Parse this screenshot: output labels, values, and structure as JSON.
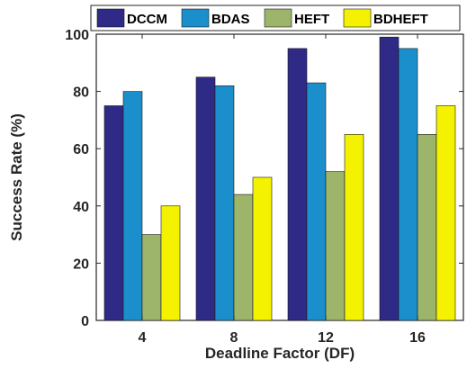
{
  "chart_data": {
    "type": "bar",
    "categories": [
      "4",
      "8",
      "12",
      "16"
    ],
    "series": [
      {
        "name": "DCCM",
        "values": [
          75,
          85,
          95,
          99
        ],
        "color": "#2e2a86"
      },
      {
        "name": "BDAS",
        "values": [
          80,
          82,
          83,
          95
        ],
        "color": "#1a8fcc"
      },
      {
        "name": "HEFT",
        "values": [
          30,
          44,
          52,
          65
        ],
        "color": "#9cb56a"
      },
      {
        "name": "BDHEFT",
        "values": [
          40,
          50,
          65,
          75
        ],
        "color": "#f4f200"
      }
    ],
    "xlabel": "Deadline Factor (DF)",
    "ylabel": "Success Rate (%)",
    "ylim": [
      0,
      100
    ],
    "yticks": [
      0,
      20,
      40,
      60,
      80,
      100
    ],
    "grid": false,
    "legend_position": "top"
  }
}
